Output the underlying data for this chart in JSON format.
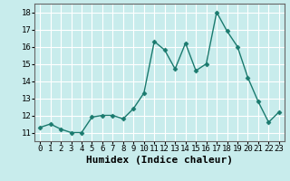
{
  "xlabel": "Humidex (Indice chaleur)",
  "ylabel": "",
  "x": [
    0,
    1,
    2,
    3,
    4,
    5,
    6,
    7,
    8,
    9,
    10,
    11,
    12,
    13,
    14,
    15,
    16,
    17,
    18,
    19,
    20,
    21,
    22,
    23
  ],
  "y": [
    11.3,
    11.5,
    11.2,
    11.0,
    11.0,
    11.9,
    12.0,
    12.0,
    11.8,
    12.4,
    13.3,
    16.3,
    15.8,
    14.7,
    16.2,
    14.6,
    15.0,
    18.0,
    16.9,
    16.0,
    14.2,
    12.8,
    11.6,
    12.2
  ],
  "line_color": "#1a7a6e",
  "marker": "D",
  "marker_size": 2.5,
  "background_color": "#c8ecec",
  "grid_color": "#ffffff",
  "ylim": [
    10.5,
    18.5
  ],
  "yticks": [
    11,
    12,
    13,
    14,
    15,
    16,
    17,
    18
  ],
  "xlim": [
    -0.5,
    23.5
  ],
  "xticks": [
    0,
    1,
    2,
    3,
    4,
    5,
    6,
    7,
    8,
    9,
    10,
    11,
    12,
    13,
    14,
    15,
    16,
    17,
    18,
    19,
    20,
    21,
    22,
    23
  ],
  "linewidth": 1.0,
  "xlabel_fontsize": 8,
  "tick_fontsize": 6.5,
  "spine_color": "#666666"
}
